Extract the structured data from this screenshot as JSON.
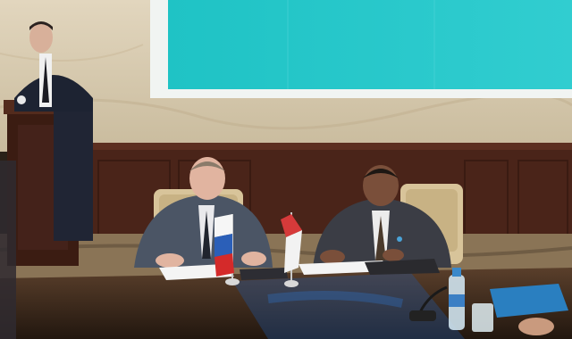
{
  "scene": {
    "description_tags": [
      "signing-ceremony",
      "conference-room"
    ],
    "flags": [
      "russia-flag",
      "indonesia-flag"
    ],
    "colors": {
      "wall": "#d9cdb5",
      "wall_shadow": "#b8aa8e",
      "screen": "#27c6c8",
      "screen_frame": "#f1f4f2",
      "wood_panel": "#4a2419",
      "table": "#3a2a1e",
      "table_reflection": "#1f5aa6",
      "carpet": "#8a7456",
      "suit_grey": "#4b5565",
      "suit_dark": "#2f3038",
      "chair": "#d8c49a"
    }
  }
}
